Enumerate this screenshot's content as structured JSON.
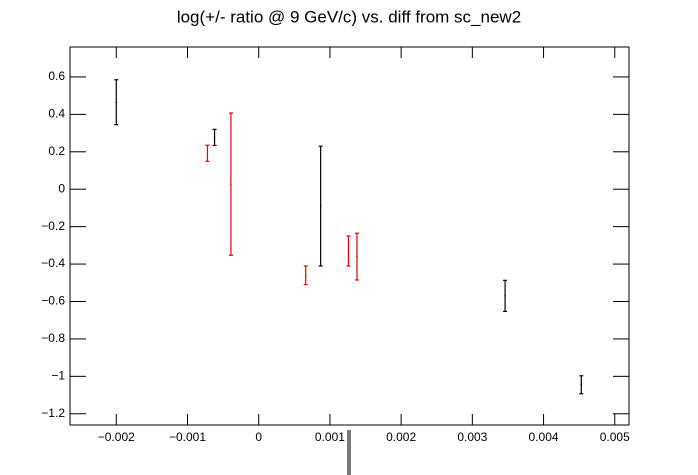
{
  "chart_data": {
    "type": "errorbar",
    "title": "log(+/- ratio @ 9 GeV/c) vs. diff from sc_new2",
    "xlim": [
      -0.00265,
      0.0052
    ],
    "xticks": [
      {
        "value": -0.002,
        "label": "−0.002"
      },
      {
        "value": -0.001,
        "label": "−0.001"
      },
      0,
      0.001,
      0.002,
      0.003,
      0.004,
      0.005
    ],
    "ylim": [
      -1.26,
      0.76
    ],
    "yticks": [
      {
        "value": -1.2,
        "label": "−1.2"
      },
      {
        "value": -1,
        "label": "−1"
      },
      {
        "value": -0.8,
        "label": "−0.8"
      },
      {
        "value": -0.6,
        "label": "−0.6"
      },
      {
        "value": -0.4,
        "label": "−0.4"
      },
      {
        "value": -0.2,
        "label": "−0.2"
      },
      0,
      0.2,
      0.4,
      0.6
    ],
    "series": [
      {
        "color": "#000000",
        "x": [
          -0.002,
          -0.00062,
          0.00087,
          0.00346,
          0.00453
        ],
        "values": [
          0.465,
          0.277,
          -0.09,
          -0.57,
          -1.045
        ],
        "errors": [
          0.12,
          0.043,
          0.32,
          0.083,
          0.048
        ]
      },
      {
        "color": "#e8000b",
        "x": [
          -0.00072,
          -0.00039,
          0.00066,
          0.00126,
          0.00138
        ],
        "values": [
          0.192,
          0.027,
          -0.46,
          -0.33,
          -0.36
        ],
        "errors": [
          0.043,
          0.38,
          0.05,
          0.08,
          0.125
        ]
      }
    ]
  }
}
